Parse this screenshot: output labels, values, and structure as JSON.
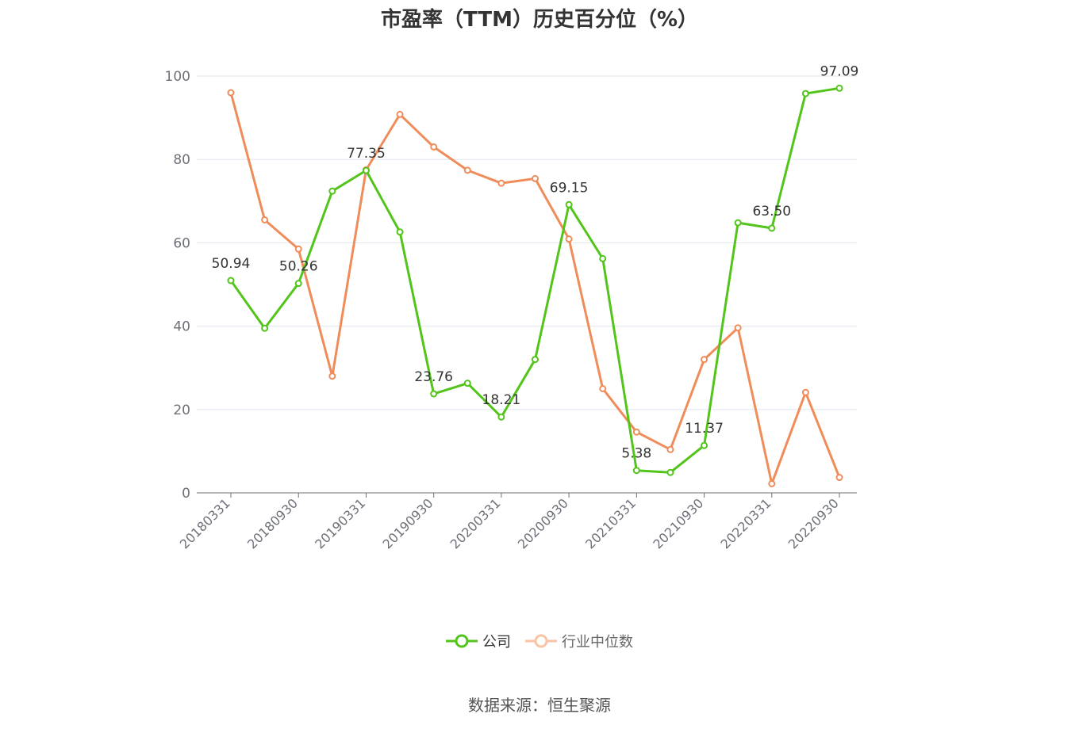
{
  "chart_data": {
    "type": "line",
    "title": "市盈率（TTM）历史百分位（%）",
    "x": [
      "20180331",
      "20180630",
      "20180930",
      "20181231",
      "20190331",
      "20190630",
      "20190930",
      "20191231",
      "20200331",
      "20200630",
      "20200930",
      "20201231",
      "20210331",
      "20210630",
      "20210930",
      "20211231",
      "20220331",
      "20220630",
      "20220930"
    ],
    "x_tick_labels": [
      "20180331",
      "20180930",
      "20190331",
      "20190930",
      "20200331",
      "20200930",
      "20210331",
      "20210930",
      "20220331",
      "20220930"
    ],
    "ylim": [
      0,
      100
    ],
    "y_ticks": [
      0,
      20,
      40,
      60,
      80,
      100
    ],
    "grid": true,
    "legend_position": "bottom",
    "series": [
      {
        "name": "公司",
        "color": "#52c41a",
        "values": [
          50.94,
          39.5,
          50.26,
          72.4,
          77.35,
          62.6,
          23.76,
          26.3,
          18.21,
          32.0,
          69.15,
          56.2,
          5.38,
          4.9,
          11.37,
          64.8,
          63.5,
          95.8,
          97.09
        ],
        "data_labels": [
          {
            "index": 0,
            "text": "50.94"
          },
          {
            "index": 2,
            "text": "50.26"
          },
          {
            "index": 4,
            "text": "77.35"
          },
          {
            "index": 6,
            "text": "23.76"
          },
          {
            "index": 8,
            "text": "18.21"
          },
          {
            "index": 10,
            "text": "69.15"
          },
          {
            "index": 12,
            "text": "5.38"
          },
          {
            "index": 14,
            "text": "11.37"
          },
          {
            "index": 16,
            "text": "63.50"
          },
          {
            "index": 18,
            "text": "97.09"
          }
        ]
      },
      {
        "name": "行业中位数",
        "color": "#f08c5a",
        "values": [
          96.0,
          65.5,
          58.5,
          28.0,
          77.5,
          90.8,
          83.0,
          77.4,
          74.3,
          75.4,
          60.9,
          25.0,
          14.6,
          10.4,
          32.0,
          39.6,
          2.2,
          24.1,
          3.7
        ]
      }
    ],
    "source": "数据来源：恒生聚源"
  }
}
